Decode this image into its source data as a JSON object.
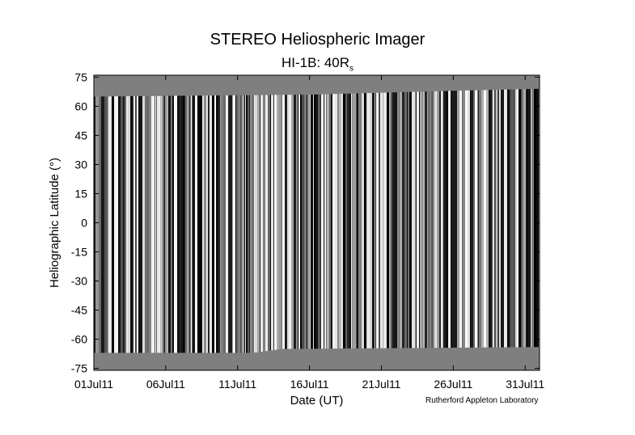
{
  "header": {
    "title": "STEREO Heliospheric Imager",
    "subtitle_main": "HI-1B: 40R",
    "subtitle_sub": "s"
  },
  "footer": {
    "credit": "Rutherford Appleton Laboratory"
  },
  "chart_data": {
    "type": "heatmap",
    "title": "STEREO Heliospheric Imager",
    "subtitle": "HI-1B: 40Rs",
    "xlabel": "Date (UT)",
    "ylabel": "Heliographic Latitude (°)",
    "x_ticks": [
      "01Jul11",
      "06Jul11",
      "11Jul11",
      "16Jul11",
      "21Jul11",
      "26Jul11",
      "31Jul11"
    ],
    "x_tick_days": [
      0,
      5,
      10,
      15,
      20,
      25,
      30
    ],
    "xlim_days": [
      0,
      31
    ],
    "y_ticks": [
      75,
      60,
      45,
      30,
      15,
      0,
      -15,
      -30,
      -45,
      -60,
      -75
    ],
    "ylim": [
      -76,
      76
    ],
    "data_coverage": {
      "upper_latitude_edge": [
        [
          0,
          65
        ],
        [
          15,
          66
        ],
        [
          20,
          67
        ],
        [
          25,
          68
        ],
        [
          31,
          69
        ]
      ],
      "lower_latitude_edge": [
        [
          0,
          -67
        ],
        [
          11,
          -67
        ],
        [
          13,
          -65
        ],
        [
          31,
          -64
        ]
      ]
    },
    "colors": {
      "no_data": "#7f7f7f",
      "background": "#ffffff",
      "axes": "#000000"
    }
  }
}
